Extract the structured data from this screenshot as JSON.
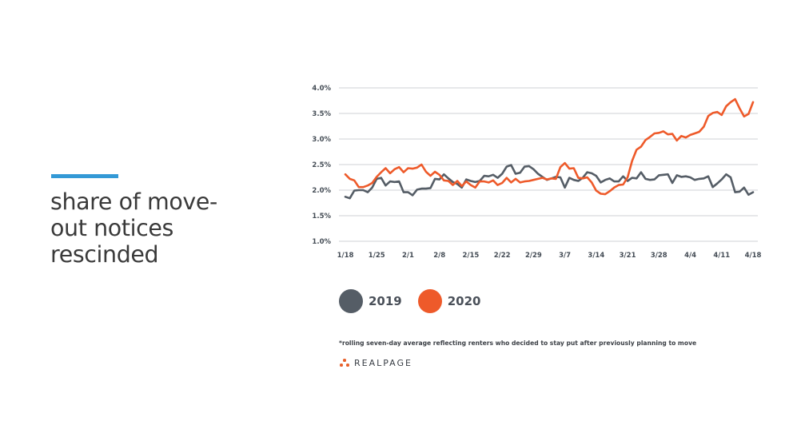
{
  "headline": {
    "lines": [
      "share of move-",
      "out notices",
      "rescinded"
    ]
  },
  "chart_data": {
    "type": "line",
    "title": "",
    "xlabel": "",
    "ylabel": "",
    "ylim": [
      1.0,
      4.0
    ],
    "y_ticks": [
      "4.0%",
      "3.5%",
      "3.0%",
      "2.5%",
      "2.0%",
      "1.5%",
      "1.0%"
    ],
    "y_tick_values": [
      4.0,
      3.5,
      3.0,
      2.5,
      2.0,
      1.5,
      1.0
    ],
    "x_ticks": [
      "1/18",
      "1/25",
      "2/1",
      "2/8",
      "2/15",
      "2/22",
      "2/29",
      "3/7",
      "3/14",
      "3/21",
      "3/28",
      "4/4",
      "4/11",
      "4/18"
    ],
    "x_tick_day": [
      0,
      7,
      14,
      21,
      28,
      35,
      42,
      49,
      56,
      63,
      70,
      77,
      84,
      91
    ],
    "x_range": [
      0,
      91
    ],
    "grid": true,
    "legend": "bottom-left",
    "series": [
      {
        "name": "2019",
        "color": "#555d66",
        "values": [
          1.87,
          1.84,
          1.99,
          2.0,
          2.0,
          1.96,
          2.05,
          2.22,
          2.24,
          2.09,
          2.17,
          2.16,
          2.17,
          1.96,
          1.96,
          1.9,
          2.01,
          2.03,
          2.03,
          2.04,
          2.22,
          2.21,
          2.31,
          2.23,
          2.16,
          2.12,
          2.05,
          2.21,
          2.18,
          2.16,
          2.18,
          2.28,
          2.27,
          2.3,
          2.24,
          2.32,
          2.46,
          2.49,
          2.32,
          2.34,
          2.46,
          2.47,
          2.41,
          2.32,
          2.26,
          2.2,
          2.23,
          2.26,
          2.25,
          2.05,
          2.24,
          2.2,
          2.18,
          2.24,
          2.35,
          2.33,
          2.28,
          2.15,
          2.2,
          2.23,
          2.17,
          2.17,
          2.27,
          2.18,
          2.24,
          2.23,
          2.35,
          2.22,
          2.2,
          2.21,
          2.29,
          2.3,
          2.31,
          2.14,
          2.29,
          2.26,
          2.27,
          2.25,
          2.2,
          2.22,
          2.23,
          2.27,
          2.06,
          2.13,
          2.21,
          2.31,
          2.25,
          1.96,
          1.97,
          2.05,
          1.91,
          1.96
        ]
      },
      {
        "name": "2020",
        "color": "#ee5a2a",
        "values": [
          2.31,
          2.22,
          2.19,
          2.06,
          2.06,
          2.09,
          2.14,
          2.26,
          2.35,
          2.43,
          2.33,
          2.41,
          2.45,
          2.35,
          2.43,
          2.42,
          2.44,
          2.5,
          2.36,
          2.28,
          2.36,
          2.3,
          2.19,
          2.18,
          2.1,
          2.18,
          2.08,
          2.17,
          2.1,
          2.05,
          2.17,
          2.17,
          2.15,
          2.19,
          2.1,
          2.14,
          2.24,
          2.15,
          2.22,
          2.15,
          2.17,
          2.18,
          2.2,
          2.22,
          2.24,
          2.21,
          2.23,
          2.22,
          2.45,
          2.53,
          2.42,
          2.43,
          2.24,
          2.23,
          2.25,
          2.15,
          1.99,
          1.93,
          1.92,
          1.98,
          2.05,
          2.1,
          2.11,
          2.25,
          2.57,
          2.79,
          2.85,
          2.98,
          3.04,
          3.11,
          3.12,
          3.15,
          3.09,
          3.1,
          2.97,
          3.06,
          3.03,
          3.08,
          3.11,
          3.14,
          3.24,
          3.45,
          3.51,
          3.53,
          3.47,
          3.64,
          3.72,
          3.78,
          3.6,
          3.44,
          3.49,
          3.72
        ]
      }
    ]
  },
  "legend": {
    "items": [
      {
        "label": "2019",
        "color": "#555d66"
      },
      {
        "label": "2020",
        "color": "#ee5a2a"
      }
    ]
  },
  "footnote": "*rolling seven-day average reflecting renters who decided to stay put after previously planning to move",
  "brand": {
    "name": "REALPAGE",
    "accent": "#e8612c",
    "title_bar_color": "#3399d6"
  }
}
